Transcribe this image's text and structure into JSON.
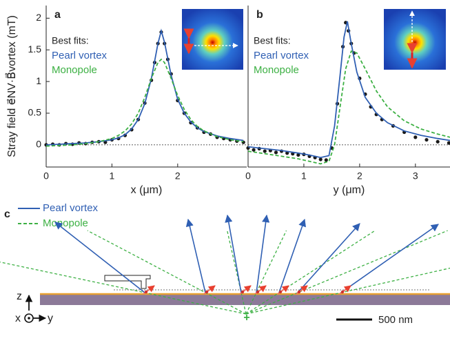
{
  "chart_data": [
    {
      "type": "line",
      "panel_label": "a",
      "xlabel": "x (μm)",
      "ylabel": "Stray field e⃗NV·B⃗vortex (mT)",
      "legend_title": "Best fits:",
      "xlim": [
        0,
        3.05
      ],
      "xticks": [
        0,
        1,
        2
      ],
      "ylim": [
        -0.35,
        2.2
      ],
      "yticks": [
        0,
        0.5,
        1,
        1.5,
        2
      ],
      "zero_line": true,
      "series": [
        {
          "mode": "markers",
          "color": "#1a1a1a",
          "x": [
            0,
            0.1,
            0.2,
            0.3,
            0.4,
            0.5,
            0.6,
            0.7,
            0.8,
            0.9,
            1.0,
            1.1,
            1.2,
            1.3,
            1.4,
            1.5,
            1.6,
            1.65,
            1.7,
            1.75,
            1.8,
            1.85,
            1.9,
            2.0,
            2.1,
            2.2,
            2.3,
            2.4,
            2.5,
            2.6,
            2.7,
            2.8,
            2.9,
            3.0
          ],
          "values": [
            0.0,
            0.01,
            0.0,
            0.02,
            0.01,
            0.03,
            0.02,
            0.04,
            0.05,
            0.04,
            0.08,
            0.1,
            0.15,
            0.24,
            0.4,
            0.66,
            1.02,
            1.3,
            1.6,
            1.78,
            1.6,
            1.35,
            1.12,
            0.7,
            0.5,
            0.35,
            0.27,
            0.2,
            0.17,
            0.12,
            0.1,
            0.08,
            0.06,
            0.04
          ]
        },
        {
          "name": "Pearl vortex",
          "mode": "line",
          "color": "#2f5fb3",
          "x": [
            0,
            0.2,
            0.4,
            0.6,
            0.8,
            1.0,
            1.1,
            1.2,
            1.3,
            1.4,
            1.5,
            1.6,
            1.7,
            1.75,
            1.8,
            1.9,
            2.0,
            2.1,
            2.2,
            2.3,
            2.4,
            2.6,
            2.8,
            3.0
          ],
          "values": [
            0,
            0.01,
            0.02,
            0.03,
            0.05,
            0.08,
            0.11,
            0.16,
            0.25,
            0.4,
            0.65,
            1.05,
            1.6,
            1.8,
            1.62,
            1.1,
            0.72,
            0.5,
            0.36,
            0.27,
            0.21,
            0.14,
            0.1,
            0.07
          ]
        },
        {
          "name": "Monopole",
          "mode": "line",
          "dash": true,
          "color": "#3cb043",
          "x": [
            0,
            0.2,
            0.4,
            0.6,
            0.8,
            1.0,
            1.1,
            1.2,
            1.3,
            1.4,
            1.5,
            1.6,
            1.7,
            1.75,
            1.8,
            1.9,
            2.0,
            2.1,
            2.2,
            2.3,
            2.4,
            2.6,
            2.8,
            3.0
          ],
          "values": [
            -0.02,
            -0.01,
            0.0,
            0.02,
            0.05,
            0.1,
            0.15,
            0.22,
            0.33,
            0.5,
            0.75,
            1.05,
            1.3,
            1.35,
            1.3,
            1.05,
            0.78,
            0.56,
            0.4,
            0.29,
            0.22,
            0.13,
            0.08,
            0.05
          ]
        }
      ]
    },
    {
      "type": "line",
      "panel_label": "b",
      "xlabel": "y (μm)",
      "legend_title": "Best fits:",
      "xlim": [
        0,
        3.62
      ],
      "xticks": [
        0,
        1,
        2,
        3
      ],
      "ylim": [
        -0.35,
        2.2
      ],
      "zero_line": true,
      "series": [
        {
          "mode": "markers",
          "color": "#1a1a1a",
          "x": [
            0,
            0.1,
            0.2,
            0.3,
            0.4,
            0.5,
            0.6,
            0.7,
            0.8,
            0.9,
            1.0,
            1.1,
            1.2,
            1.3,
            1.4,
            1.5,
            1.6,
            1.7,
            1.75,
            1.8,
            1.85,
            1.9,
            2.0,
            2.1,
            2.2,
            2.3,
            2.4,
            2.6,
            2.8,
            3.0,
            3.2,
            3.4,
            3.6
          ],
          "values": [
            -0.05,
            -0.08,
            -0.06,
            -0.1,
            -0.09,
            -0.12,
            -0.1,
            -0.13,
            -0.14,
            -0.16,
            -0.15,
            -0.18,
            -0.2,
            -0.23,
            -0.24,
            -0.05,
            0.65,
            1.55,
            1.93,
            1.8,
            1.6,
            1.45,
            1.05,
            0.8,
            0.6,
            0.48,
            0.4,
            0.3,
            0.2,
            0.12,
            0.08,
            0.05,
            0.03
          ]
        },
        {
          "name": "Pearl vortex",
          "mode": "line",
          "color": "#2f5fb3",
          "x": [
            0,
            0.3,
            0.6,
            0.9,
            1.1,
            1.3,
            1.45,
            1.55,
            1.65,
            1.72,
            1.78,
            1.85,
            1.95,
            2.1,
            2.3,
            2.5,
            2.8,
            3.1,
            3.4,
            3.62
          ],
          "values": [
            -0.03,
            -0.06,
            -0.09,
            -0.13,
            -0.16,
            -0.2,
            -0.17,
            0.3,
            1.1,
            1.7,
            1.95,
            1.6,
            1.15,
            0.75,
            0.5,
            0.35,
            0.22,
            0.15,
            0.1,
            0.07
          ]
        },
        {
          "name": "Monopole",
          "mode": "line",
          "dash": true,
          "color": "#3cb043",
          "x": [
            0,
            0.3,
            0.6,
            0.9,
            1.1,
            1.3,
            1.45,
            1.55,
            1.65,
            1.75,
            1.85,
            1.95,
            2.1,
            2.3,
            2.5,
            2.8,
            3.1,
            3.4,
            3.62
          ],
          "values": [
            -0.1,
            -0.14,
            -0.18,
            -0.22,
            -0.26,
            -0.3,
            -0.26,
            0.0,
            0.6,
            1.2,
            1.48,
            1.45,
            1.2,
            0.85,
            0.6,
            0.38,
            0.25,
            0.17,
            0.12
          ]
        }
      ]
    }
  ],
  "diagram": {
    "panel_label": "c",
    "legend": [
      "Pearl vortex",
      "Monopole"
    ],
    "axes": {
      "z": "z",
      "x": "x",
      "y": "y"
    },
    "scale_bar": "500 nm"
  }
}
